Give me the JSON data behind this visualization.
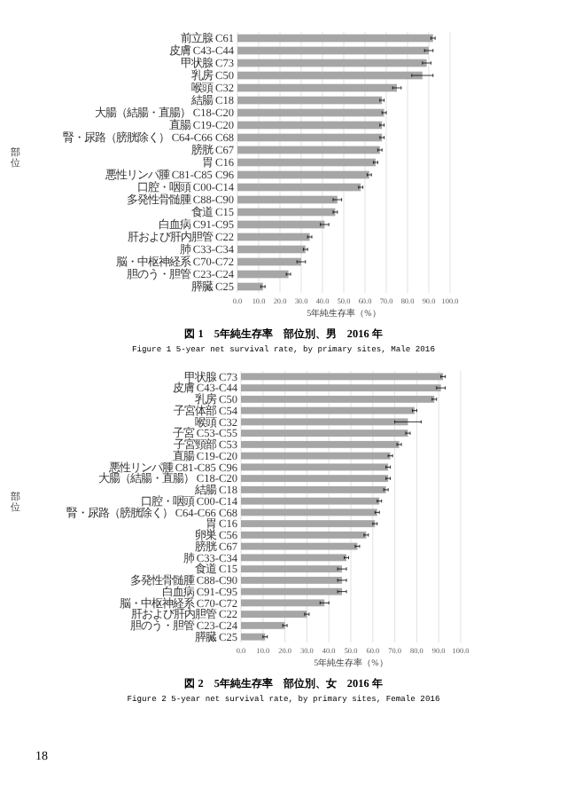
{
  "chart_data": [
    {
      "type": "bar",
      "orientation": "horizontal",
      "title": "図 1　5年純生存率　部位別、男　2016 年",
      "subtitle": "Figure 1 5-year net survival rate, by primary sites, Male 2016",
      "xlabel": "5年純生存率（%）",
      "ylabel": "部位",
      "categories": [
        "前立腺 C61",
        "皮膚 C43-C44",
        "甲状腺 C73",
        "乳房 C50",
        "喉頭 C32",
        "結腸 C18",
        "大腸（結腸・直腸） C18-C20",
        "直腸 C19-C20",
        "腎・尿路（膀胱除く） C64-C66 C68",
        "膀胱 C67",
        "胃 C16",
        "悪性リンパ腫 C81-C85 C96",
        "口腔・咽頭 C00-C14",
        "多発性骨髄腫 C88-C90",
        "食道 C15",
        "白血病 C91-C95",
        "肝および肝内胆管 C22",
        "肺 C33-C34",
        "脳・中枢神経系 C70-C72",
        "胆のう・胆管 C23-C24",
        "膵臓 C25"
      ],
      "values": [
        92,
        90,
        89,
        87,
        75,
        68,
        69,
        68,
        68,
        67,
        65,
        62,
        58,
        47,
        46,
        41,
        34,
        32,
        30,
        24,
        12
      ],
      "errors": [
        1,
        2,
        2,
        5,
        2,
        1,
        1,
        1,
        1,
        1,
        1,
        1,
        1,
        2,
        1,
        2,
        1,
        1,
        2,
        1,
        1
      ],
      "color": "#a6a6a6",
      "xlim": [
        0,
        100
      ],
      "xticks": [
        {
          "value": 0,
          "label": "0.0"
        },
        {
          "value": 10,
          "label": "10.0"
        },
        {
          "value": 20,
          "label": "20.0"
        },
        {
          "value": 30,
          "label": "30.0"
        },
        {
          "value": 40,
          "label": "40.0"
        },
        {
          "value": 50,
          "label": "50.0"
        },
        {
          "value": 60,
          "label": "60.0"
        },
        {
          "value": 70,
          "label": "70.0"
        },
        {
          "value": 80,
          "label": "80.0"
        },
        {
          "value": 90,
          "label": "90.0"
        },
        {
          "value": 100,
          "label": "100.0"
        }
      ],
      "grid": "x"
    },
    {
      "type": "bar",
      "orientation": "horizontal",
      "title": "図 2　5年純生存率　部位別、女　2016 年",
      "subtitle": "Figure 2 5-year net survival rate, by primary sites, Female 2016",
      "xlabel": "5年純生存率（%）",
      "ylabel": "部位",
      "categories": [
        "甲状腺 C73",
        "皮膚 C43-C44",
        "乳房 C50",
        "子宮体部 C54",
        "喉頭 C32",
        "子宮 C53-C55",
        "子宮頸部 C53",
        "直腸 C19-C20",
        "悪性リンパ腫 C81-C85 C96",
        "大腸（結腸・直腸） C18-C20",
        "結腸 C18",
        "口腔・咽頭 C00-C14",
        "腎・尿路（膀胱除く） C64-C66 C68",
        "胃 C16",
        "卵巣 C56",
        "膀胱 C67",
        "肺 C33-C34",
        "食道 C15",
        "多発性骨髄腫 C88-C90",
        "白血病 C91-C95",
        "脳・中枢神経系 C70-C72",
        "肝および肝内胆管 C22",
        "胆のう・胆管 C23-C24",
        "膵臓 C25"
      ],
      "values": [
        92,
        91,
        88,
        79,
        76,
        76,
        72,
        68,
        67,
        67,
        66,
        63,
        62,
        61,
        57,
        53,
        48,
        46,
        46,
        46,
        38,
        30,
        20,
        11
      ],
      "errors": [
        1,
        2,
        1,
        1,
        6,
        1,
        1,
        1,
        1,
        1,
        1,
        1,
        1,
        1,
        1,
        1,
        1,
        2,
        2,
        2,
        2,
        1,
        1,
        1
      ],
      "color": "#a6a6a6",
      "xlim": [
        0,
        100
      ],
      "xticks": [
        {
          "value": 0,
          "label": "0.0"
        },
        {
          "value": 10,
          "label": "10.0"
        },
        {
          "value": 20,
          "label": "20.0"
        },
        {
          "value": 30,
          "label": "30.0"
        },
        {
          "value": 40,
          "label": "40.0"
        },
        {
          "value": 50,
          "label": "50.0"
        },
        {
          "value": 60,
          "label": "60.0"
        },
        {
          "value": 70,
          "label": "70.0"
        },
        {
          "value": 80,
          "label": "80.0"
        },
        {
          "value": 90,
          "label": "90.0"
        },
        {
          "value": 100,
          "label": "100.0"
        }
      ],
      "grid": "x",
      "annotations": [
        "18"
      ]
    }
  ]
}
